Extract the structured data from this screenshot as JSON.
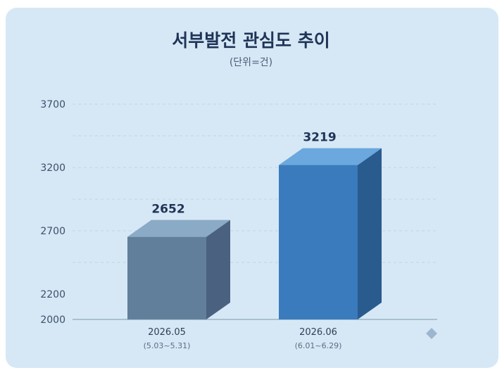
{
  "chart_data": {
    "type": "bar",
    "title": "서부발전 관심도 추이",
    "subtitle": "(단위=건)",
    "categories": [
      "2026.05",
      "2026.06"
    ],
    "category_sublabels": [
      "(5.03~5.31)",
      "(6.01~6.29)"
    ],
    "values": [
      2652,
      3219
    ],
    "y_ticks": [
      "3700",
      "3200",
      "2700",
      "2200",
      "2000"
    ],
    "ylim": [
      2000,
      3700
    ],
    "grid": true,
    "colors": {
      "bar_front": [
        "#617f9b",
        "#3a7bbd"
      ],
      "bar_top": [
        "#8aaac6",
        "#6aa8de"
      ],
      "bar_side": [
        "#4a6280",
        "#2a5b8e"
      ],
      "text": "#1f3457"
    }
  }
}
